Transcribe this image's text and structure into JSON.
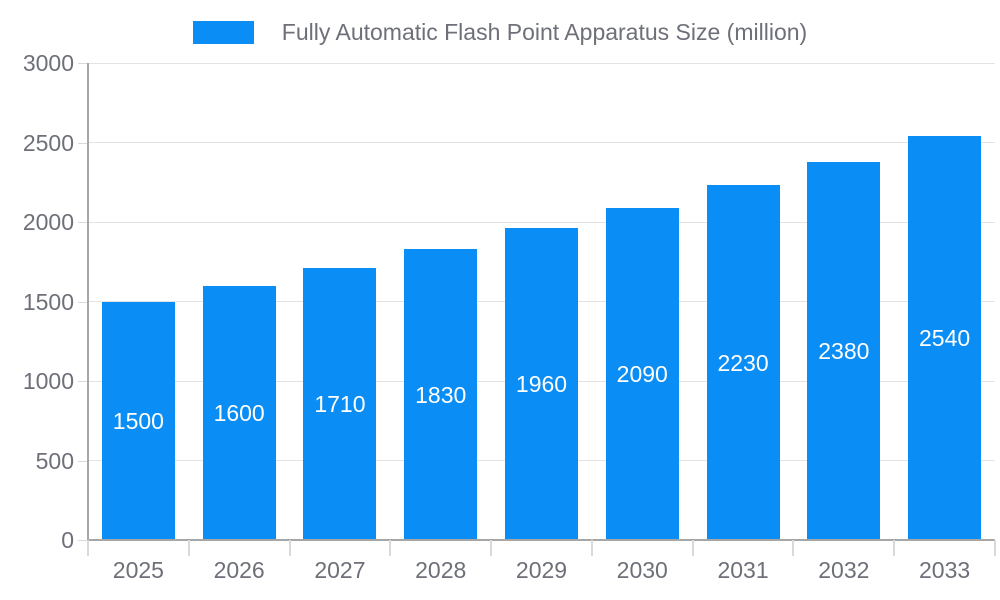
{
  "chart_data": {
    "type": "bar",
    "title": "",
    "legend_label": "Fully Automatic Flash Point Apparatus Size (million)",
    "legend_position": "top-center",
    "categories": [
      "2025",
      "2026",
      "2027",
      "2028",
      "2029",
      "2030",
      "2031",
      "2032",
      "2033"
    ],
    "series": [
      {
        "name": "Fully Automatic Flash Point Apparatus Size (million)",
        "values": [
          1500,
          1600,
          1710,
          1830,
          1960,
          2090,
          2230,
          2380,
          2540
        ]
      }
    ],
    "data_labels_visible": true,
    "xlabel": "",
    "ylabel": "",
    "ylim": [
      0,
      3000
    ],
    "yticks": [
      0,
      500,
      1000,
      1500,
      2000,
      2500,
      3000
    ],
    "grid": true,
    "colors": {
      "bar": "#0a8df5",
      "bar_label_text": "#ffffff",
      "axis_text": "#6e7079",
      "legend_text": "#6e7079",
      "axis_line": "#a6a6a6",
      "tick_line": "#d9d9d9",
      "grid_line": "#e3e3e3",
      "background": "#ffffff"
    }
  }
}
